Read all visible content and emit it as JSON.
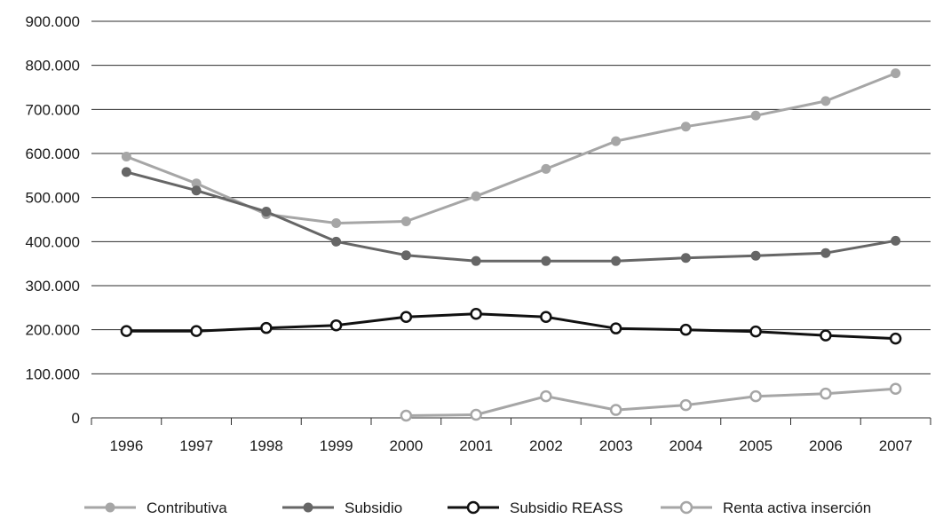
{
  "chart_data": {
    "type": "line",
    "title": "",
    "xlabel": "",
    "ylabel": "",
    "ylim": [
      0,
      900000
    ],
    "grid": "horizontal",
    "legend_position": "bottom",
    "y_tick_labels": [
      "0",
      "100.000",
      "200.000",
      "300.000",
      "400.000",
      "500.000",
      "600.000",
      "700.000",
      "800.000",
      "900.000"
    ],
    "y_tick_values": [
      0,
      100000,
      200000,
      300000,
      400000,
      500000,
      600000,
      700000,
      800000,
      900000
    ],
    "categories": [
      "1996",
      "1997",
      "1998",
      "1999",
      "2000",
      "2001",
      "2002",
      "2003",
      "2004",
      "2005",
      "2006",
      "2007"
    ],
    "series": [
      {
        "name": "Contributiva",
        "color": "#a6a6a6",
        "marker": "filled",
        "values": [
          593000,
          532000,
          462000,
          442000,
          446000,
          503000,
          565000,
          628000,
          661000,
          686000,
          719000,
          782000
        ]
      },
      {
        "name": "Subsidio",
        "color": "#666666",
        "marker": "filled",
        "values": [
          558000,
          516000,
          468000,
          400000,
          369000,
          356000,
          356000,
          356000,
          363000,
          368000,
          374000,
          402000
        ]
      },
      {
        "name": "Subsidio REASS",
        "color": "#111111",
        "marker": "hollow",
        "values": [
          197000,
          197000,
          204000,
          210000,
          229000,
          236000,
          229000,
          203000,
          200000,
          196000,
          187000,
          180000
        ]
      },
      {
        "name": "Renta activa inserción",
        "color": "#a6a6a6",
        "marker": "hollow",
        "values": [
          null,
          null,
          null,
          null,
          5000,
          7000,
          49000,
          18000,
          29000,
          49000,
          55000,
          66000
        ]
      }
    ]
  }
}
